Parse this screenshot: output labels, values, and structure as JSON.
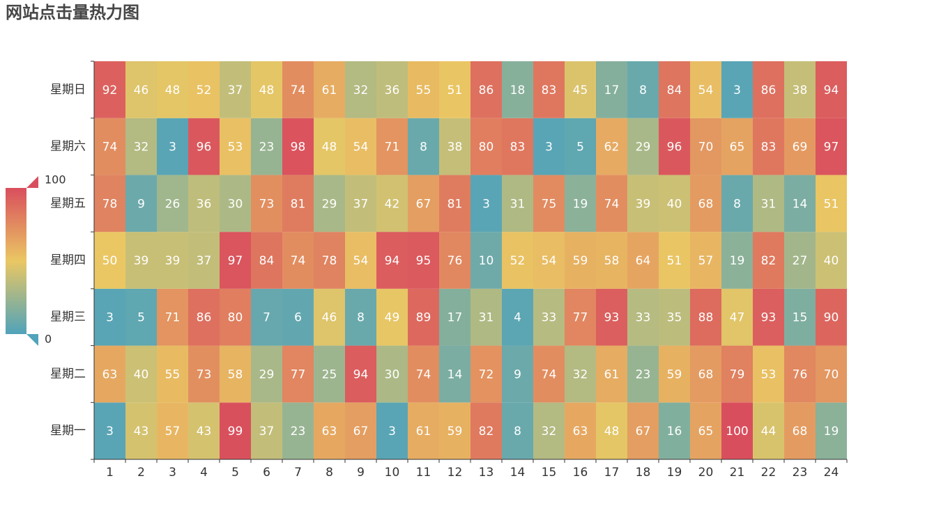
{
  "chart_data": {
    "type": "heatmap",
    "title": "网站点击量热力图",
    "categories": [
      "1",
      "2",
      "3",
      "4",
      "5",
      "6",
      "7",
      "8",
      "9",
      "10",
      "11",
      "12",
      "13",
      "14",
      "15",
      "16",
      "17",
      "18",
      "19",
      "20",
      "21",
      "22",
      "23",
      "24"
    ],
    "y_categories": [
      "星期一",
      "星期二",
      "星期三",
      "星期四",
      "星期五",
      "星期六",
      "星期日"
    ],
    "values": [
      [
        3,
        43,
        57,
        43,
        99,
        37,
        23,
        63,
        67,
        3,
        61,
        59,
        82,
        8,
        32,
        63,
        48,
        67,
        16,
        65,
        100,
        44,
        68,
        19
      ],
      [
        63,
        40,
        55,
        73,
        58,
        29,
        77,
        25,
        94,
        30,
        74,
        14,
        72,
        9,
        74,
        32,
        61,
        23,
        59,
        68,
        79,
        53,
        76,
        70
      ],
      [
        3,
        5,
        71,
        86,
        80,
        7,
        6,
        46,
        8,
        49,
        89,
        17,
        31,
        4,
        33,
        77,
        93,
        33,
        35,
        88,
        47,
        93,
        15,
        90
      ],
      [
        50,
        39,
        39,
        37,
        97,
        84,
        74,
        78,
        54,
        94,
        95,
        76,
        10,
        52,
        54,
        59,
        58,
        64,
        51,
        57,
        19,
        82,
        27,
        40
      ],
      [
        78,
        9,
        26,
        36,
        30,
        73,
        81,
        29,
        37,
        42,
        67,
        81,
        3,
        31,
        75,
        19,
        74,
        39,
        40,
        68,
        8,
        31,
        14,
        51
      ],
      [
        74,
        32,
        3,
        96,
        53,
        23,
        98,
        48,
        54,
        71,
        8,
        38,
        80,
        83,
        3,
        5,
        62,
        29,
        96,
        70,
        65,
        83,
        69,
        97
      ],
      [
        92,
        46,
        48,
        52,
        37,
        48,
        74,
        61,
        32,
        36,
        55,
        51,
        86,
        18,
        83,
        45,
        17,
        8,
        84,
        54,
        3,
        86,
        38,
        94
      ]
    ],
    "visual_map": {
      "min": 0,
      "max": 100,
      "colors": [
        "#50a3ba",
        "#eac763",
        "#d94e5d"
      ]
    }
  }
}
